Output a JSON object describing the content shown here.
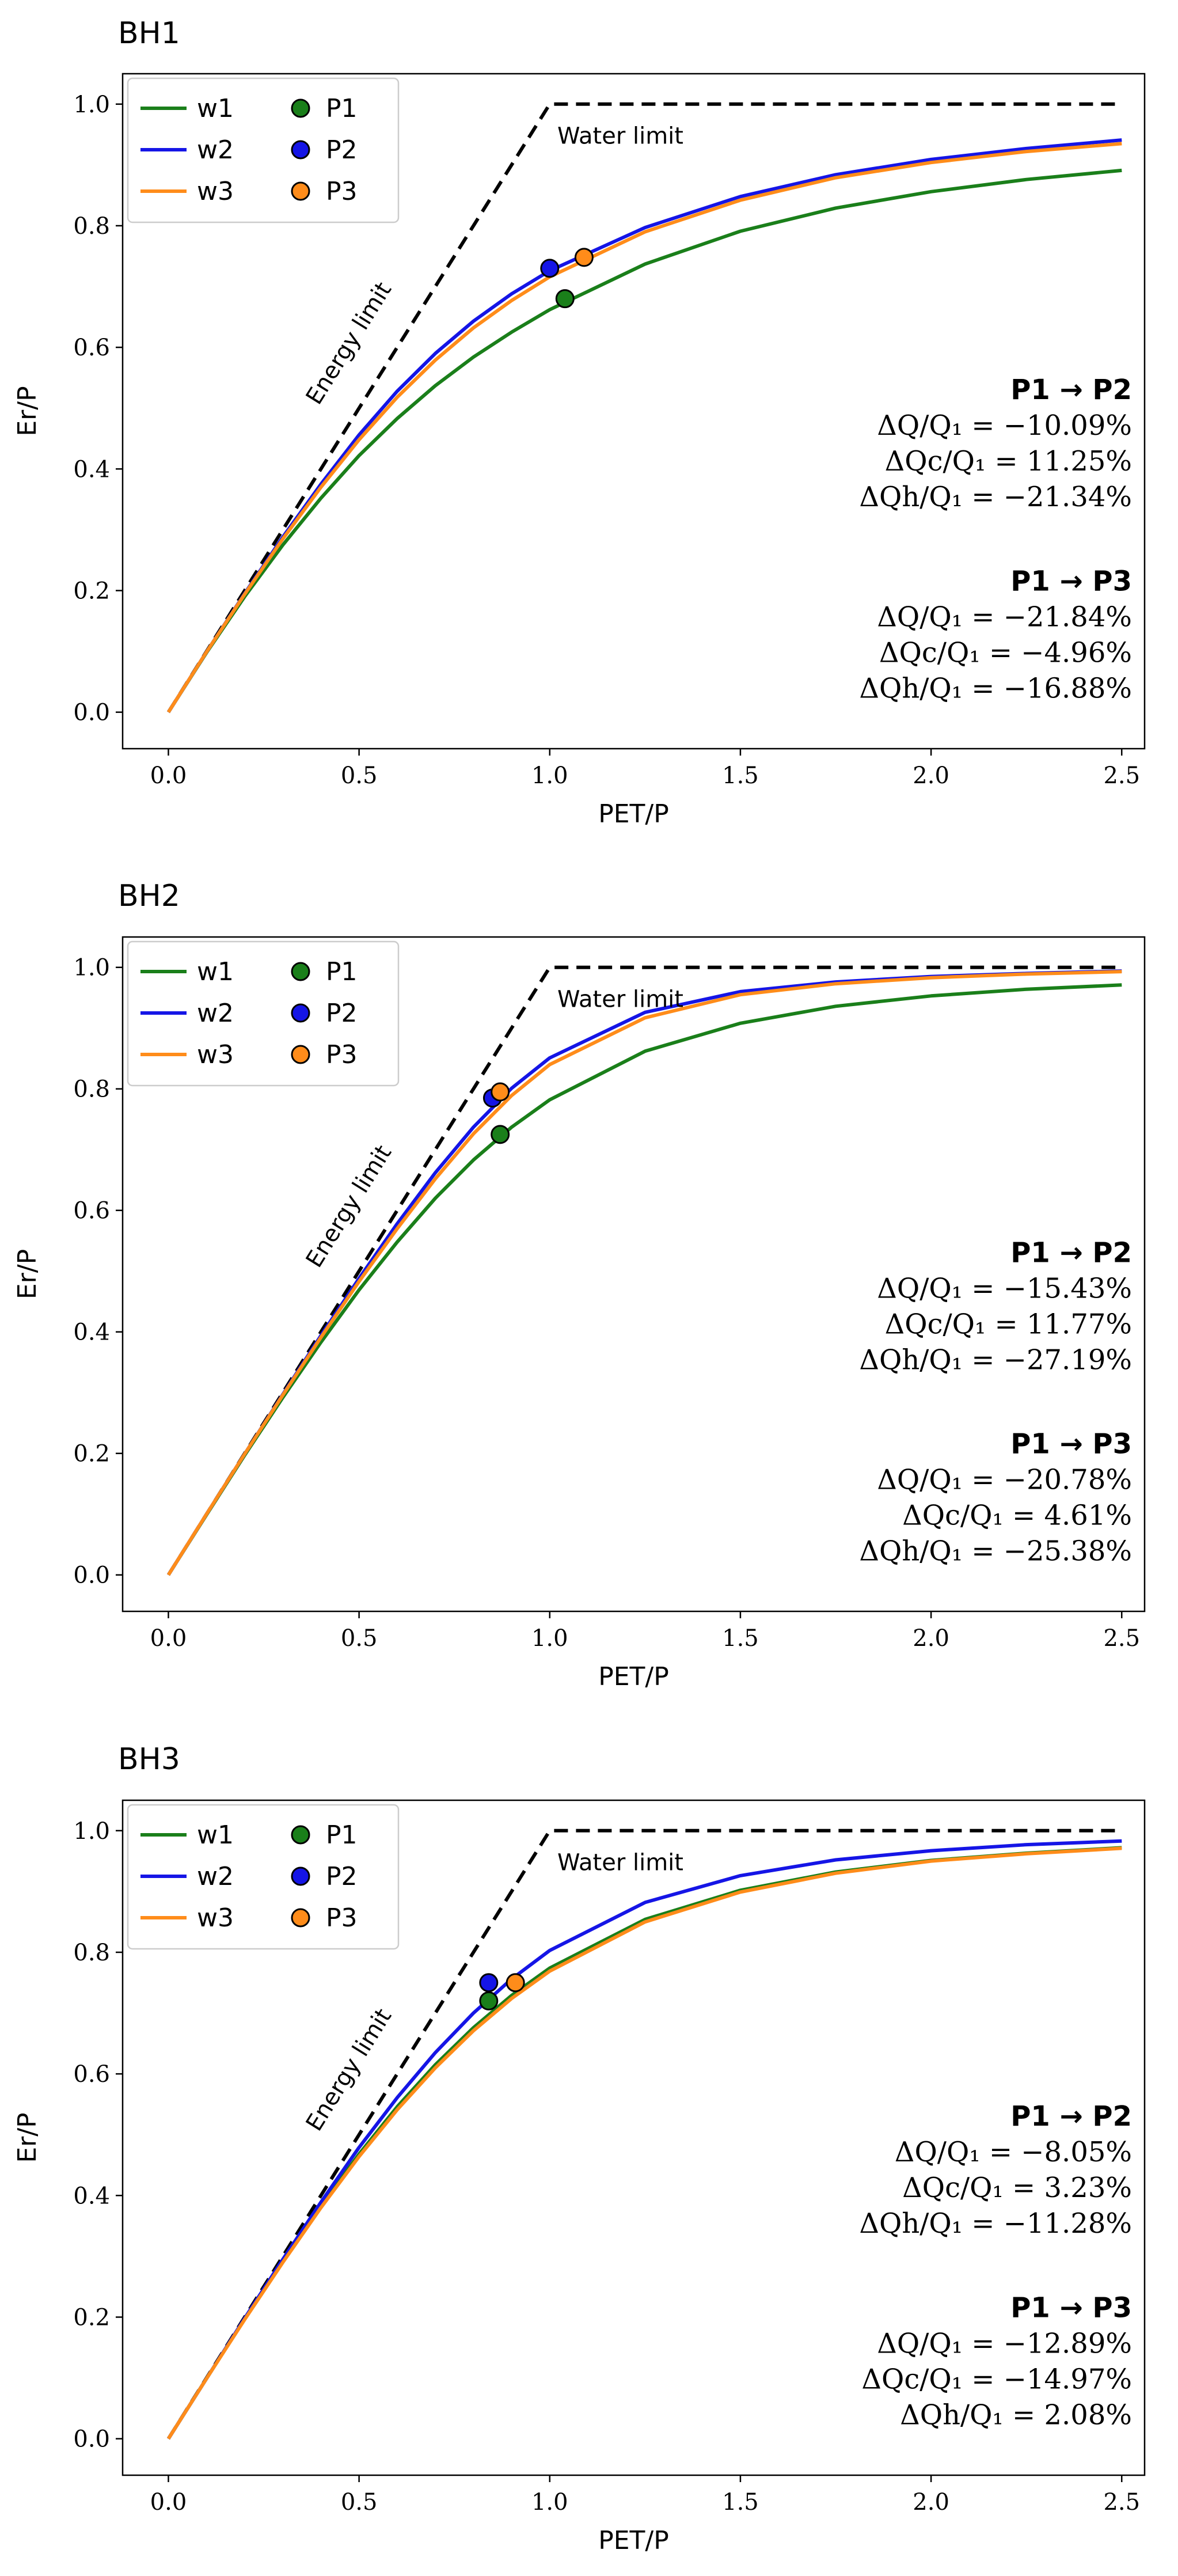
{
  "colors": {
    "w1": "#1a7f1a",
    "w2": "#1515e6",
    "w3": "#ff8c1a",
    "limit": "#000000"
  },
  "chart_data": [
    {
      "type": "line",
      "title": "BH1",
      "xlabel": "PET/P",
      "ylabel": "Er/P",
      "xlim": [
        -0.12,
        2.56
      ],
      "ylim": [
        -0.06,
        1.05
      ],
      "xticks": [
        "0.0",
        "0.5",
        "1.0",
        "1.5",
        "2.0",
        "2.5"
      ],
      "yticks": [
        "0.0",
        "0.2",
        "0.4",
        "0.6",
        "0.8",
        "1.0"
      ],
      "legend_position": "top-left",
      "limit_labels": {
        "energy": "Energy limit",
        "water": "Water limit"
      },
      "series": [
        {
          "name": "w1",
          "color": "#1a7f1a",
          "x": [
            0,
            0.1,
            0.2,
            0.3,
            0.4,
            0.5,
            0.6,
            0.7,
            0.8,
            0.9,
            1.0,
            1.25,
            1.5,
            1.75,
            2.0,
            2.25,
            2.5
          ],
          "y": [
            0,
            0.098,
            0.19,
            0.275,
            0.352,
            0.422,
            0.483,
            0.537,
            0.584,
            0.625,
            0.662,
            0.737,
            0.791,
            0.829,
            0.856,
            0.876,
            0.891
          ]
        },
        {
          "name": "w2",
          "color": "#1515e6",
          "x": [
            0,
            0.1,
            0.2,
            0.3,
            0.4,
            0.5,
            0.6,
            0.7,
            0.8,
            0.9,
            1.0,
            1.25,
            1.5,
            1.75,
            2.0,
            2.25,
            2.5
          ],
          "y": [
            0,
            0.099,
            0.195,
            0.288,
            0.375,
            0.456,
            0.528,
            0.59,
            0.643,
            0.688,
            0.726,
            0.797,
            0.848,
            0.884,
            0.909,
            0.927,
            0.941
          ]
        },
        {
          "name": "w3",
          "color": "#ff8c1a",
          "x": [
            0,
            0.1,
            0.2,
            0.3,
            0.4,
            0.5,
            0.6,
            0.7,
            0.8,
            0.9,
            1.0,
            1.25,
            1.5,
            1.75,
            2.0,
            2.25,
            2.5
          ],
          "y": [
            0,
            0.099,
            0.194,
            0.285,
            0.37,
            0.448,
            0.518,
            0.579,
            0.632,
            0.677,
            0.716,
            0.79,
            0.842,
            0.879,
            0.904,
            0.922,
            0.935
          ]
        }
      ],
      "points": [
        {
          "name": "P1",
          "color": "#1a7f1a",
          "x": 1.04,
          "y": 0.68
        },
        {
          "name": "P2",
          "color": "#1515e6",
          "x": 1.0,
          "y": 0.73
        },
        {
          "name": "P3",
          "color": "#ff8c1a",
          "x": 1.09,
          "y": 0.748
        }
      ],
      "annotations": [
        {
          "header": "P1 → P2",
          "lines": [
            "ΔQ/Q₁ = −10.09%",
            "ΔQc/Q₁ = 11.25%",
            "ΔQh/Q₁ = −21.34%"
          ]
        },
        {
          "header": "P1 → P3",
          "lines": [
            "ΔQ/Q₁ = −21.84%",
            "ΔQc/Q₁ = −4.96%",
            "ΔQh/Q₁ = −16.88%"
          ]
        }
      ]
    },
    {
      "type": "line",
      "title": "BH2",
      "xlabel": "PET/P",
      "ylabel": "Er/P",
      "xlim": [
        -0.12,
        2.56
      ],
      "ylim": [
        -0.06,
        1.05
      ],
      "xticks": [
        "0.0",
        "0.5",
        "1.0",
        "1.5",
        "2.0",
        "2.5"
      ],
      "yticks": [
        "0.0",
        "0.2",
        "0.4",
        "0.6",
        "0.8",
        "1.0"
      ],
      "legend_position": "top-left",
      "limit_labels": {
        "energy": "Energy limit",
        "water": "Water limit"
      },
      "series": [
        {
          "name": "w1",
          "color": "#1a7f1a",
          "x": [
            0,
            0.1,
            0.2,
            0.3,
            0.4,
            0.5,
            0.6,
            0.7,
            0.8,
            0.9,
            1.0,
            1.25,
            1.5,
            1.75,
            2.0,
            2.25,
            2.5
          ],
          "y": [
            0,
            0.099,
            0.197,
            0.292,
            0.383,
            0.469,
            0.548,
            0.62,
            0.683,
            0.737,
            0.782,
            0.862,
            0.908,
            0.936,
            0.953,
            0.964,
            0.971
          ]
        },
        {
          "name": "w2",
          "color": "#1515e6",
          "x": [
            0,
            0.1,
            0.2,
            0.3,
            0.4,
            0.5,
            0.6,
            0.7,
            0.8,
            0.9,
            1.0,
            1.25,
            1.5,
            1.75,
            2.0,
            2.25,
            2.5
          ],
          "y": [
            0,
            0.1,
            0.199,
            0.297,
            0.394,
            0.488,
            0.578,
            0.662,
            0.737,
            0.801,
            0.851,
            0.926,
            0.96,
            0.976,
            0.985,
            0.99,
            0.994
          ]
        },
        {
          "name": "w3",
          "color": "#ff8c1a",
          "x": [
            0,
            0.1,
            0.2,
            0.3,
            0.4,
            0.5,
            0.6,
            0.7,
            0.8,
            0.9,
            1.0,
            1.25,
            1.5,
            1.75,
            2.0,
            2.25,
            2.5
          ],
          "y": [
            0,
            0.1,
            0.199,
            0.296,
            0.391,
            0.483,
            0.57,
            0.652,
            0.726,
            0.789,
            0.84,
            0.917,
            0.955,
            0.973,
            0.983,
            0.989,
            0.993
          ]
        }
      ],
      "points": [
        {
          "name": "P1",
          "color": "#1a7f1a",
          "x": 0.87,
          "y": 0.725
        },
        {
          "name": "P2",
          "color": "#1515e6",
          "x": 0.85,
          "y": 0.785
        },
        {
          "name": "P3",
          "color": "#ff8c1a",
          "x": 0.87,
          "y": 0.795
        }
      ],
      "annotations": [
        {
          "header": "P1 → P2",
          "lines": [
            "ΔQ/Q₁ = −15.43%",
            "ΔQc/Q₁ = 11.77%",
            "ΔQh/Q₁ = −27.19%"
          ]
        },
        {
          "header": "P1 → P3",
          "lines": [
            "ΔQ/Q₁ = −20.78%",
            "ΔQc/Q₁ = 4.61%",
            "ΔQh/Q₁ = −25.38%"
          ]
        }
      ]
    },
    {
      "type": "line",
      "title": "BH3",
      "xlabel": "PET/P",
      "ylabel": "Er/P",
      "xlim": [
        -0.12,
        2.56
      ],
      "ylim": [
        -0.06,
        1.05
      ],
      "xticks": [
        "0.0",
        "0.5",
        "1.0",
        "1.5",
        "2.0",
        "2.5"
      ],
      "yticks": [
        "0.0",
        "0.2",
        "0.4",
        "0.6",
        "0.8",
        "1.0"
      ],
      "legend_position": "top-left",
      "limit_labels": {
        "energy": "Energy limit",
        "water": "Water limit"
      },
      "series": [
        {
          "name": "w1",
          "color": "#1a7f1a",
          "x": [
            0,
            0.1,
            0.2,
            0.3,
            0.4,
            0.5,
            0.6,
            0.7,
            0.8,
            0.9,
            1.0,
            1.25,
            1.5,
            1.75,
            2.0,
            2.25,
            2.5
          ],
          "y": [
            0,
            0.099,
            0.197,
            0.292,
            0.383,
            0.468,
            0.546,
            0.615,
            0.676,
            0.729,
            0.774,
            0.854,
            0.902,
            0.932,
            0.951,
            0.963,
            0.972
          ]
        },
        {
          "name": "w2",
          "color": "#1515e6",
          "x": [
            0,
            0.1,
            0.2,
            0.3,
            0.4,
            0.5,
            0.6,
            0.7,
            0.8,
            0.9,
            1.0,
            1.25,
            1.5,
            1.75,
            2.0,
            2.25,
            2.5
          ],
          "y": [
            0,
            0.099,
            0.198,
            0.295,
            0.389,
            0.479,
            0.561,
            0.635,
            0.7,
            0.756,
            0.803,
            0.882,
            0.926,
            0.952,
            0.967,
            0.977,
            0.983
          ]
        },
        {
          "name": "w3",
          "color": "#ff8c1a",
          "x": [
            0,
            0.1,
            0.2,
            0.3,
            0.4,
            0.5,
            0.6,
            0.7,
            0.8,
            0.9,
            1.0,
            1.25,
            1.5,
            1.75,
            2.0,
            2.25,
            2.5
          ],
          "y": [
            0,
            0.099,
            0.196,
            0.29,
            0.38,
            0.464,
            0.541,
            0.61,
            0.671,
            0.724,
            0.769,
            0.85,
            0.899,
            0.93,
            0.95,
            0.962,
            0.971
          ]
        }
      ],
      "points": [
        {
          "name": "P1",
          "color": "#1a7f1a",
          "x": 0.84,
          "y": 0.72
        },
        {
          "name": "P2",
          "color": "#1515e6",
          "x": 0.84,
          "y": 0.75
        },
        {
          "name": "P3",
          "color": "#ff8c1a",
          "x": 0.91,
          "y": 0.75
        }
      ],
      "annotations": [
        {
          "header": "P1 → P2",
          "lines": [
            "ΔQ/Q₁ = −8.05%",
            "ΔQc/Q₁ = 3.23%",
            "ΔQh/Q₁ = −11.28%"
          ]
        },
        {
          "header": "P1 → P3",
          "lines": [
            "ΔQ/Q₁ = −12.89%",
            "ΔQc/Q₁ = −14.97%",
            "ΔQh/Q₁ = 2.08%"
          ]
        }
      ]
    }
  ]
}
